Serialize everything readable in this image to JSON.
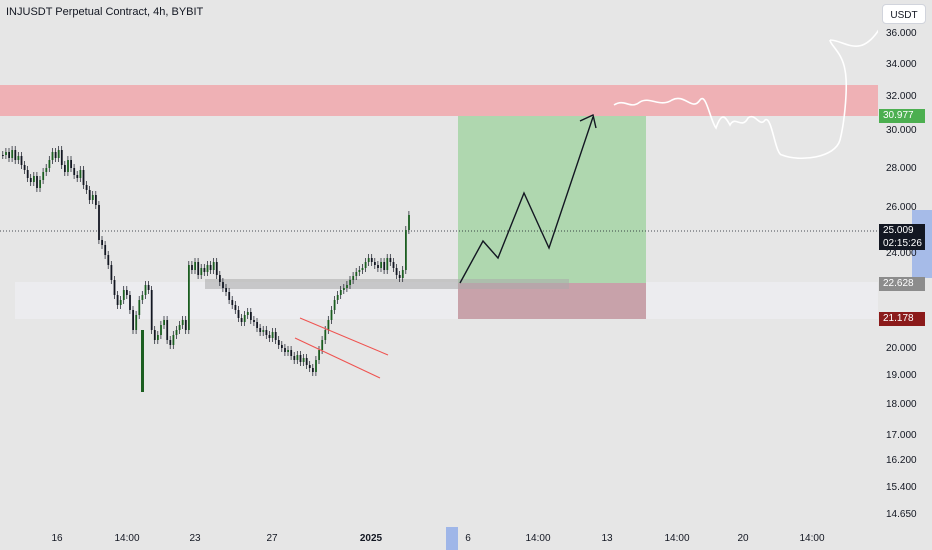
{
  "header": {
    "title": "INJUSDT Perpetual Contract, 4h, BYBIT",
    "currency": "USDT"
  },
  "price_axis": {
    "ticks": [
      "36.000",
      "34.000",
      "32.000",
      "30.000",
      "28.000",
      "26.000",
      "24.000",
      "20.000",
      "19.000",
      "18.000",
      "17.000",
      "16.200",
      "15.400",
      "14.650"
    ]
  },
  "time_axis": {
    "ticks": [
      "16",
      "14:00",
      "23",
      "27",
      "2025",
      "6",
      "14:00",
      "13",
      "14:00",
      "20",
      "14:00"
    ],
    "bold_tick": "2025"
  },
  "badges": {
    "target": "30.977",
    "current": "25.009",
    "countdown": "02:15:26",
    "entry": "22.628",
    "stop": "21.178"
  },
  "colors": {
    "background": "#e6e6e6",
    "target_badge": "#4caf50",
    "current_badge": "#131722",
    "entry_badge": "#8c8c8c",
    "stop_badge": "#8b1a1a",
    "resistance_zone": "#f0a7ab",
    "profit_zone": "#a8d5a8",
    "loss_zone": "#c49aa2",
    "candle_green": "#1b5e20",
    "drawing": "#131722",
    "channel": "#ef5350"
  },
  "chart_data": {
    "type": "candlestick",
    "symbol": "INJUSDT",
    "interval": "4h",
    "y_scale": "log",
    "ylim": [
      14.65,
      36.0
    ],
    "last_price": 25.009,
    "trade_setup": {
      "entry": 22.628,
      "target": 30.977,
      "stop": 21.178
    },
    "resistance_zone": [
      31.1,
      32.6
    ]
  }
}
